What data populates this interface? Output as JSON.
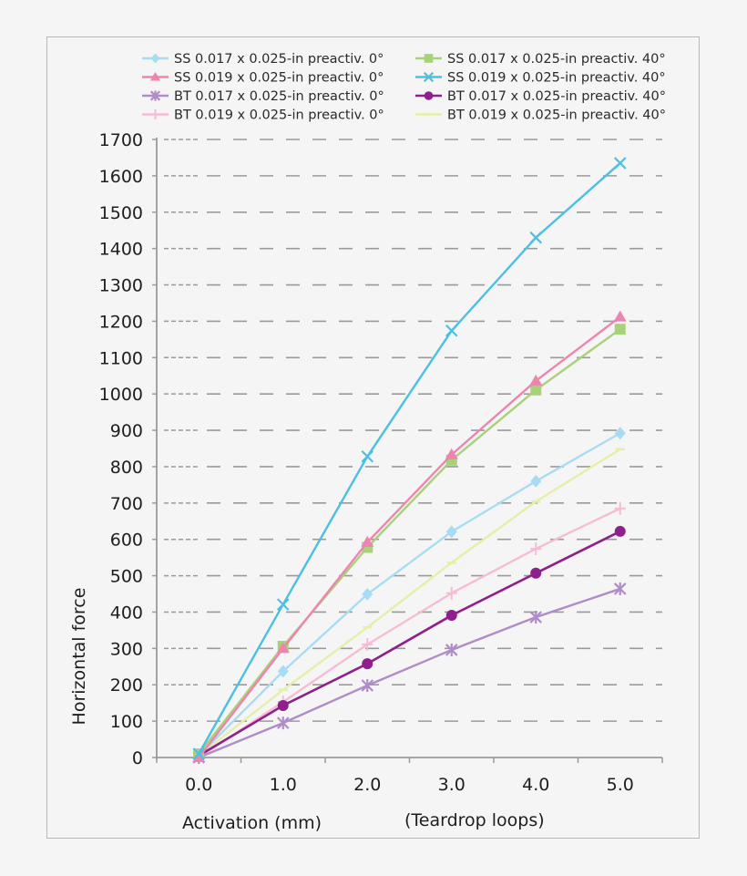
{
  "chart_data": {
    "type": "line",
    "title": "",
    "xlabel": "Activation (mm)",
    "xlabel_note": "(Teardrop loops)",
    "ylabel": "Horizontal force",
    "categories": [
      "0.0",
      "1.0",
      "2.0",
      "3.0",
      "4.0",
      "5.0"
    ],
    "x": [
      0,
      1,
      2,
      3,
      4,
      5
    ],
    "ylim": [
      0,
      1700
    ],
    "yticks": [
      0,
      100,
      200,
      300,
      400,
      500,
      600,
      700,
      800,
      900,
      1000,
      1100,
      1200,
      1300,
      1400,
      1500,
      1600,
      1700
    ],
    "grid": "horizontal dashed",
    "legend_position": "top, two columns",
    "series": [
      {
        "name": "SS 0.017 x 0.025-in preactiv. 0°",
        "color": "#a8dcf4",
        "marker": "diamond",
        "values": [
          5,
          237,
          449,
          621,
          760,
          892
        ]
      },
      {
        "name": "SS 0.019 x 0.025-in preactiv. 0°",
        "color": "#ee85b0",
        "marker": "triangle",
        "values": [
          0,
          300,
          592,
          833,
          1036,
          1212
        ]
      },
      {
        "name": "BT 0.017 x 0.025-in preactiv. 0°",
        "color": "#b08cc8",
        "marker": "star",
        "values": [
          0,
          95,
          198,
          296,
          386,
          464
        ]
      },
      {
        "name": "BT 0.019 x 0.025-in preactiv. 0°",
        "color": "#f6bcd6",
        "marker": "plus",
        "values": [
          0,
          153,
          311,
          452,
          574,
          685
        ]
      },
      {
        "name": "SS 0.017 x 0.025-in preactiv. 40°",
        "color": "#a8d27a",
        "marker": "square",
        "values": [
          10,
          306,
          578,
          818,
          1011,
          1178
        ]
      },
      {
        "name": "SS 0.019 x 0.025-in preactiv. 40°",
        "color": "#4bc0e2",
        "marker": "x",
        "values": [
          10,
          421,
          828,
          1174,
          1430,
          1635
        ]
      },
      {
        "name": "BT 0.017 x 0.025-in preactiv. 40°",
        "color": "#8e1f8c",
        "marker": "circle",
        "values": [
          5,
          143,
          258,
          391,
          507,
          622
        ]
      },
      {
        "name": "BT 0.019 x 0.025-in preactiv. 40°",
        "color": "#e6efa8",
        "marker": "dash",
        "values": [
          5,
          186,
          358,
          536,
          704,
          848
        ]
      }
    ]
  }
}
